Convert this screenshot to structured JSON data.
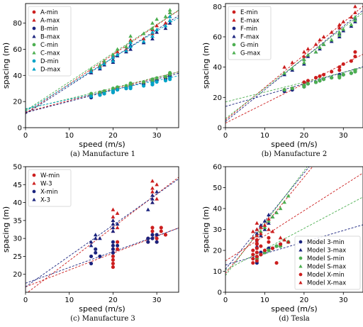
{
  "figure": {
    "xlabel": "speed (m/s)",
    "ylabel": "spacing (m)"
  },
  "chart_data": [
    {
      "type": "scatter",
      "caption": "(a) Manufacture 1",
      "xlim": [
        0,
        35
      ],
      "ylim": [
        0,
        95
      ],
      "xticks": [
        0,
        10,
        20,
        30
      ],
      "yticks": [
        0,
        20,
        40,
        60,
        80
      ],
      "legend": "top-left",
      "series": [
        {
          "name": "A-min",
          "color": "#cc1e1e",
          "marker": "circle",
          "x": [
            15,
            17,
            17,
            20,
            20,
            21,
            23,
            24,
            24,
            27,
            29,
            29,
            30,
            32,
            33,
            33
          ],
          "y": [
            25,
            26,
            27,
            28,
            29,
            30,
            31,
            32,
            33,
            34,
            35,
            36,
            37,
            38,
            40,
            41
          ],
          "fit": [
            12,
            0.88
          ]
        },
        {
          "name": "A-max",
          "color": "#cc1e1e",
          "marker": "triangle",
          "x": [
            15,
            17,
            18,
            20,
            20,
            21,
            23,
            24,
            24,
            27,
            29,
            29,
            30,
            32,
            33,
            33
          ],
          "y": [
            44,
            47,
            50,
            52,
            55,
            58,
            60,
            63,
            67,
            68,
            72,
            75,
            78,
            80,
            85,
            88
          ],
          "fit": [
            11,
            2.25
          ]
        },
        {
          "name": "B-min",
          "color": "#1a237e",
          "marker": "circle",
          "x": [
            15,
            17,
            18,
            20,
            20,
            21,
            23,
            24,
            24,
            27,
            29,
            29,
            30,
            32,
            33,
            33
          ],
          "y": [
            23,
            25,
            26,
            27,
            28,
            29,
            30,
            31,
            32,
            33,
            33,
            35,
            36,
            37,
            39,
            40
          ],
          "fit": [
            11.5,
            0.86
          ]
        },
        {
          "name": "B-max",
          "color": "#1a237e",
          "marker": "triangle",
          "x": [
            15,
            17,
            18,
            20,
            20,
            21,
            23,
            24,
            24,
            27,
            29,
            29,
            30,
            32,
            33,
            33
          ],
          "y": [
            42,
            45,
            48,
            50,
            52,
            55,
            58,
            60,
            63,
            65,
            68,
            70,
            73,
            76,
            80,
            82
          ],
          "fit": [
            10.5,
            2.15
          ]
        },
        {
          "name": "C-min",
          "color": "#4caf50",
          "marker": "circle",
          "x": [
            15,
            17,
            18,
            20,
            20,
            21,
            23,
            24,
            24,
            27,
            29,
            29,
            30,
            32,
            33,
            33
          ],
          "y": [
            26,
            27,
            28,
            29,
            30,
            31,
            32,
            33,
            34,
            35,
            36,
            37,
            38,
            39,
            41,
            42
          ],
          "fit": [
            14,
            0.82
          ]
        },
        {
          "name": "C-max",
          "color": "#4caf50",
          "marker": "triangle",
          "x": [
            15,
            17,
            18,
            20,
            20,
            21,
            23,
            24,
            24,
            27,
            29,
            29,
            30,
            32,
            33,
            33
          ],
          "y": [
            45,
            48,
            51,
            54,
            56,
            60,
            62,
            66,
            70,
            72,
            76,
            80,
            83,
            85,
            88,
            90
          ],
          "fit": [
            13,
            2.2
          ]
        },
        {
          "name": "D-min",
          "color": "#00a3c7",
          "marker": "circle",
          "x": [
            15,
            17,
            18,
            20,
            20,
            21,
            23,
            24,
            24,
            27,
            29,
            29,
            30,
            32,
            33,
            33
          ],
          "y": [
            24,
            25,
            26,
            27,
            28,
            29,
            30,
            30,
            31,
            32,
            33,
            34,
            35,
            36,
            37,
            38
          ],
          "fit": [
            14.5,
            0.72
          ]
        },
        {
          "name": "D-max",
          "color": "#00a3c7",
          "marker": "triangle",
          "x": [
            15,
            17,
            18,
            20,
            20,
            21,
            23,
            24,
            24,
            27,
            29,
            29,
            30,
            32,
            33,
            33
          ],
          "y": [
            43,
            46,
            49,
            51,
            54,
            56,
            59,
            62,
            65,
            66,
            70,
            73,
            75,
            78,
            82,
            85
          ],
          "fit": [
            12.5,
            2.05
          ]
        }
      ]
    },
    {
      "type": "scatter",
      "caption": "(b) Manufacture 2",
      "xlim": [
        0,
        35
      ],
      "ylim": [
        0,
        82
      ],
      "xticks": [
        0,
        10,
        20,
        30
      ],
      "yticks": [
        0,
        20,
        40,
        60,
        80
      ],
      "legend": "top-left",
      "series": [
        {
          "name": "E-min",
          "color": "#cc1e1e",
          "marker": "circle",
          "x": [
            15,
            17,
            20,
            20,
            21,
            23,
            24,
            25,
            27,
            29,
            29,
            30,
            32,
            33,
            33
          ],
          "y": [
            25,
            26,
            28,
            30,
            31,
            33,
            34,
            35,
            37,
            38,
            40,
            42,
            44,
            47,
            50
          ],
          "fit": [
            3,
            1.3
          ]
        },
        {
          "name": "E-max",
          "color": "#cc1e1e",
          "marker": "triangle",
          "x": [
            15,
            17,
            20,
            20,
            21,
            23,
            24,
            25,
            27,
            29,
            29,
            30,
            32,
            33,
            33
          ],
          "y": [
            40,
            43,
            47,
            50,
            52,
            55,
            58,
            60,
            63,
            66,
            68,
            70,
            73,
            76,
            80
          ],
          "fit": [
            5,
            2.15
          ]
        },
        {
          "name": "F-min",
          "color": "#1a237e",
          "marker": "circle",
          "x": [
            15,
            17,
            20,
            20,
            21,
            23,
            24,
            25,
            27,
            29,
            29,
            30,
            32,
            33,
            33
          ],
          "y": [
            24,
            25,
            27,
            28,
            29,
            30,
            31,
            32,
            33,
            34,
            35,
            35,
            36,
            37,
            38
          ],
          "fit": [
            14,
            0.75
          ]
        },
        {
          "name": "F-max",
          "color": "#1a237e",
          "marker": "triangle",
          "x": [
            15,
            17,
            20,
            20,
            21,
            23,
            24,
            25,
            27,
            29,
            29,
            30,
            32,
            33,
            33
          ],
          "y": [
            35,
            38,
            42,
            45,
            47,
            50,
            52,
            55,
            57,
            60,
            62,
            64,
            67,
            70,
            72
          ],
          "fit": [
            4,
            2.1
          ]
        },
        {
          "name": "G-min",
          "color": "#4caf50",
          "marker": "circle",
          "x": [
            15,
            17,
            20,
            20,
            21,
            23,
            24,
            25,
            27,
            29,
            29,
            30,
            32,
            33,
            33
          ],
          "y": [
            25,
            26,
            27,
            28,
            29,
            30,
            31,
            32,
            33,
            33,
            34,
            35,
            36,
            37,
            38
          ],
          "fit": [
            17,
            0.65
          ]
        },
        {
          "name": "G-max",
          "color": "#4caf50",
          "marker": "triangle",
          "x": [
            15,
            17,
            20,
            20,
            21,
            23,
            24,
            25,
            27,
            29,
            29,
            30,
            32,
            33,
            33
          ],
          "y": [
            36,
            39,
            43,
            45,
            48,
            50,
            53,
            55,
            58,
            61,
            63,
            65,
            68,
            71,
            73
          ],
          "fit": [
            6,
            2.0
          ]
        }
      ]
    },
    {
      "type": "scatter",
      "caption": "(c) Manufacture 3",
      "xlim": [
        0,
        35
      ],
      "ylim": [
        15,
        50
      ],
      "xticks": [
        0,
        10,
        20,
        30
      ],
      "yticks": [
        20,
        25,
        30,
        35,
        40,
        45,
        50
      ],
      "legend": "top-left",
      "series": [
        {
          "name": "W-min",
          "color": "#cc1e1e",
          "marker": "circle",
          "x": [
            20,
            20,
            20,
            20,
            20,
            20,
            20,
            21,
            21,
            28,
            28,
            29,
            29,
            29,
            30,
            30,
            30,
            31,
            31,
            32
          ],
          "y": [
            22,
            23,
            24,
            25,
            26,
            27,
            28,
            27,
            29,
            29,
            30,
            31,
            32,
            33,
            29,
            30,
            31,
            32,
            33,
            31
          ],
          "fit": [
            16.5,
            0.47
          ]
        },
        {
          "name": "W-3",
          "color": "#cc1e1e",
          "marker": "triangle",
          "x": [
            20,
            20,
            20,
            20,
            20,
            21,
            21,
            29,
            29,
            29,
            29,
            29,
            30,
            30
          ],
          "y": [
            32,
            34,
            35,
            36,
            38,
            33,
            37,
            40,
            42,
            43,
            44,
            46,
            41,
            45
          ],
          "fit": [
            14.5,
            0.93
          ]
        },
        {
          "name": "X-min",
          "color": "#1a237e",
          "marker": "circle",
          "x": [
            15,
            15,
            16,
            16,
            17,
            20,
            20,
            20,
            20,
            21,
            28,
            28,
            29,
            29,
            30,
            30
          ],
          "y": [
            23,
            25,
            26,
            27,
            25,
            26,
            27,
            28,
            29,
            28,
            29,
            30,
            31,
            30,
            29,
            31
          ],
          "fit": [
            17.5,
            0.44
          ]
        },
        {
          "name": "X-3",
          "color": "#1a237e",
          "marker": "triangle",
          "x": [
            15,
            15,
            16,
            16,
            17,
            20,
            20,
            20,
            20,
            21,
            28,
            29,
            29,
            29,
            30
          ],
          "y": [
            28,
            29,
            30,
            31,
            30,
            32,
            33,
            34,
            35,
            34,
            38,
            40,
            41,
            42,
            43
          ],
          "fit": [
            16.5,
            0.86
          ]
        }
      ]
    },
    {
      "type": "scatter",
      "caption": "(d) Tesla",
      "xlim": [
        0,
        35
      ],
      "ylim": [
        0,
        60
      ],
      "xticks": [
        0,
        10,
        20,
        30
      ],
      "yticks": [
        0,
        10,
        20,
        30,
        40,
        50,
        60
      ],
      "legend": "bottom-right",
      "series": [
        {
          "name": "Model 3-min",
          "color": "#1a237e",
          "marker": "circle",
          "x": [
            8,
            8,
            8,
            9,
            9,
            10,
            11,
            11,
            12,
            13,
            14,
            16
          ],
          "y": [
            14,
            16,
            17,
            18,
            19,
            19,
            20,
            21,
            21,
            22,
            23,
            24
          ],
          "fit": [
            13,
            0.55
          ]
        },
        {
          "name": "Model 3-max",
          "color": "#1a237e",
          "marker": "triangle",
          "x": [
            8,
            8,
            8,
            8,
            9,
            9,
            10,
            10,
            11,
            11,
            12,
            13
          ],
          "y": [
            22,
            25,
            28,
            30,
            27,
            32,
            30,
            34,
            33,
            37,
            36,
            38
          ],
          "fit": [
            11,
            2.3
          ]
        },
        {
          "name": "Model S-min",
          "color": "#4caf50",
          "marker": "circle",
          "x": [
            8,
            8,
            9,
            10,
            11,
            12,
            13,
            14,
            16
          ],
          "y": [
            16,
            17,
            18,
            19,
            20,
            21,
            22,
            22,
            24
          ],
          "fit": [
            10.5,
            1.0
          ]
        },
        {
          "name": "Model S-max",
          "color": "#4caf50",
          "marker": "triangle",
          "x": [
            8,
            8,
            9,
            10,
            11,
            12,
            13,
            14,
            15,
            16
          ],
          "y": [
            24,
            27,
            29,
            31,
            34,
            36,
            38,
            40,
            43,
            46
          ],
          "fit": [
            8,
            2.5
          ]
        },
        {
          "name": "Model X-min",
          "color": "#cc1e1e",
          "marker": "circle",
          "x": [
            7,
            7,
            7,
            7,
            8,
            8,
            8,
            8,
            8,
            8,
            9,
            9,
            10,
            11,
            11,
            12,
            13,
            14
          ],
          "y": [
            14,
            16,
            18,
            20,
            15,
            17,
            19,
            21,
            23,
            25,
            18,
            22,
            20,
            24,
            26,
            21,
            14,
            23
          ],
          "fit": [
            15,
            1.2
          ]
        },
        {
          "name": "Model X-max",
          "color": "#cc1e1e",
          "marker": "triangle",
          "x": [
            7,
            7,
            8,
            8,
            8,
            8,
            9,
            9,
            10,
            11,
            11,
            12,
            14,
            15,
            16
          ],
          "y": [
            26,
            29,
            24,
            27,
            30,
            33,
            28,
            31,
            32,
            30,
            35,
            29,
            26,
            25,
            24
          ],
          "fit": [
            9,
            2.3
          ]
        }
      ]
    }
  ]
}
